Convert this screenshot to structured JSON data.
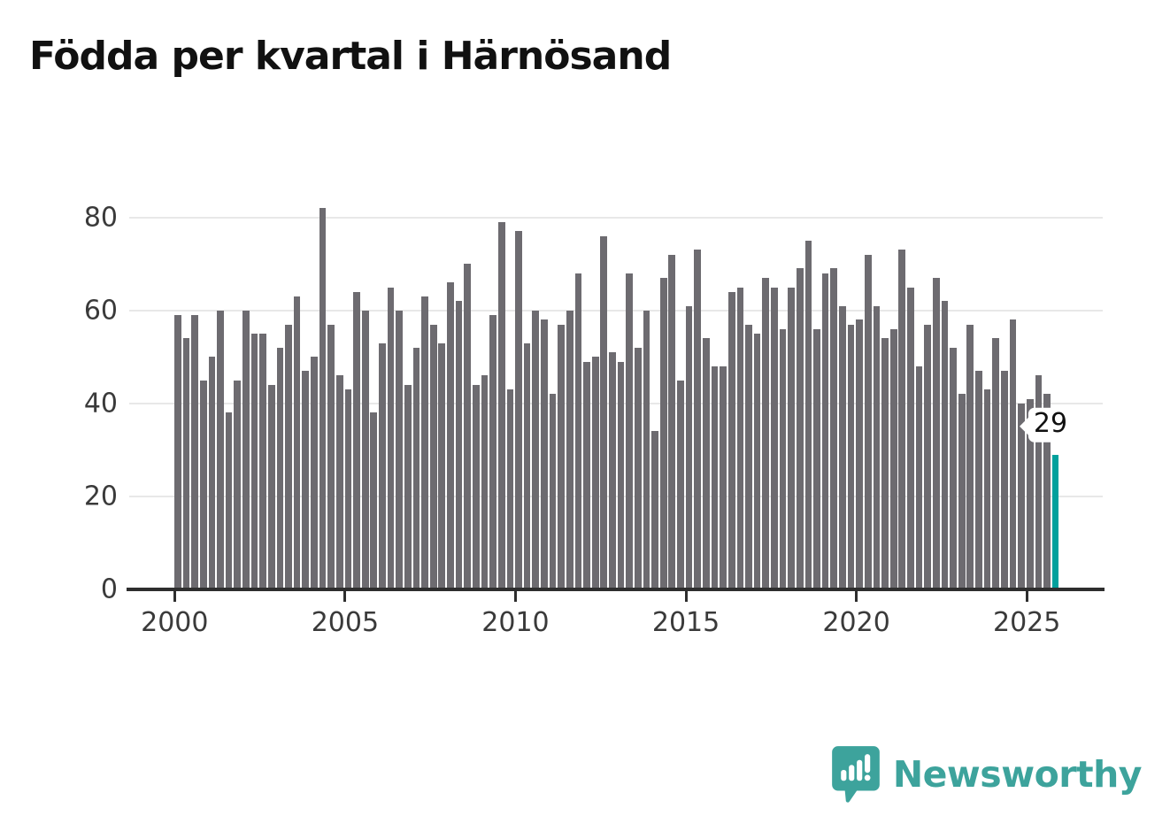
{
  "title": "Födda per kvartal i Härnösand",
  "chart_data": {
    "type": "bar",
    "title": "Födda per kvartal i Härnösand",
    "x_start": "2000 Q1",
    "x_end": "2025 Q4",
    "ylim": [
      0,
      80
    ],
    "yticks": [
      0,
      20,
      40,
      60,
      80
    ],
    "xticks": [
      2000,
      2005,
      2010,
      2015,
      2020,
      2025
    ],
    "grid": true,
    "legend": "none",
    "bar_color": "#6d6b70",
    "highlight_color": "#00a09c",
    "annotation": {
      "text": "29",
      "applies_to": "2025 Q4"
    },
    "years": [
      {
        "year": 2000,
        "values": [
          59,
          54,
          59,
          45
        ]
      },
      {
        "year": 2001,
        "values": [
          50,
          60,
          38,
          45
        ]
      },
      {
        "year": 2002,
        "values": [
          60,
          55,
          55,
          44
        ]
      },
      {
        "year": 2003,
        "values": [
          52,
          57,
          63,
          47
        ]
      },
      {
        "year": 2004,
        "values": [
          50,
          82,
          57,
          46
        ]
      },
      {
        "year": 2005,
        "values": [
          43,
          64,
          60,
          38
        ]
      },
      {
        "year": 2006,
        "values": [
          53,
          65,
          60,
          44
        ]
      },
      {
        "year": 2007,
        "values": [
          52,
          63,
          57,
          53
        ]
      },
      {
        "year": 2008,
        "values": [
          66,
          62,
          70,
          44
        ]
      },
      {
        "year": 2009,
        "values": [
          46,
          59,
          79,
          43
        ]
      },
      {
        "year": 2010,
        "values": [
          77,
          53,
          60,
          58
        ]
      },
      {
        "year": 2011,
        "values": [
          42,
          57,
          60,
          68
        ]
      },
      {
        "year": 2012,
        "values": [
          49,
          50,
          76,
          51
        ]
      },
      {
        "year": 2013,
        "values": [
          49,
          68,
          52,
          60
        ]
      },
      {
        "year": 2014,
        "values": [
          34,
          67,
          72,
          45
        ]
      },
      {
        "year": 2015,
        "values": [
          61,
          73,
          54,
          48
        ]
      },
      {
        "year": 2016,
        "values": [
          48,
          64,
          65,
          57
        ]
      },
      {
        "year": 2017,
        "values": [
          55,
          67,
          65,
          56
        ]
      },
      {
        "year": 2018,
        "values": [
          65,
          69,
          75,
          56
        ]
      },
      {
        "year": 2019,
        "values": [
          68,
          69,
          61,
          57
        ]
      },
      {
        "year": 2020,
        "values": [
          58,
          72,
          61,
          54
        ]
      },
      {
        "year": 2021,
        "values": [
          56,
          73,
          65,
          48
        ]
      },
      {
        "year": 2022,
        "values": [
          57,
          67,
          62,
          52
        ]
      },
      {
        "year": 2023,
        "values": [
          42,
          57,
          47,
          43
        ]
      },
      {
        "year": 2024,
        "values": [
          54,
          47,
          58,
          40
        ]
      },
      {
        "year": 2025,
        "values": [
          41,
          46,
          42,
          29
        ]
      }
    ]
  },
  "branding": {
    "name": "Newsworthy",
    "color": "#3da39c"
  }
}
